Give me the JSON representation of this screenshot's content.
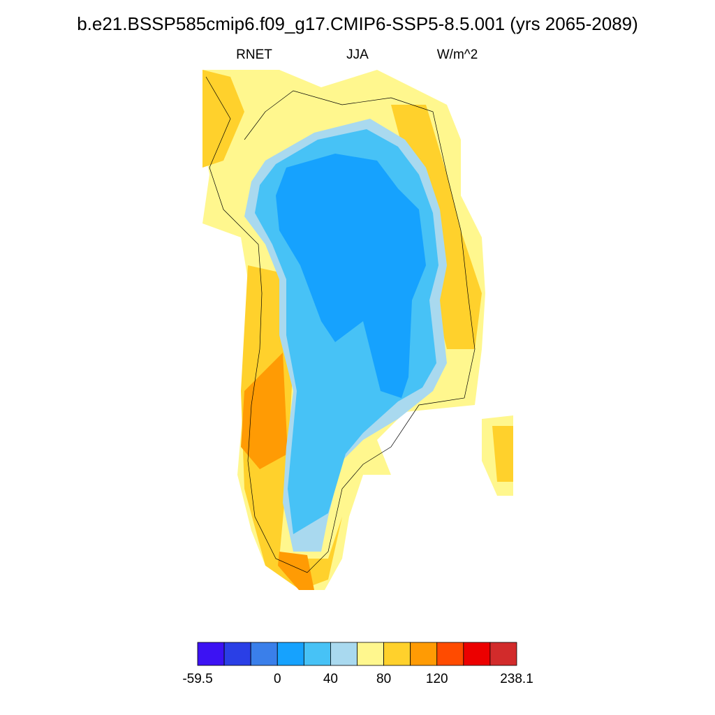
{
  "header": {
    "title": "b.e21.BSSP585cmip6.f09_g17.CMIP6-SSP5-8.5.001 (yrs 2065-2089)",
    "left": "RNET",
    "center": "JJA",
    "right": "W/m^2"
  },
  "colorbar": {
    "colors": [
      "#3c12f3",
      "#2a3fe6",
      "#3a7fea",
      "#16a2fe",
      "#47c2f6",
      "#a9d9ef",
      "#fff78e",
      "#ffd12c",
      "#ff9b04",
      "#ff4b00",
      "#ec0000",
      "#d22b2b"
    ],
    "levels": [
      -59.5,
      null,
      null,
      0,
      null,
      40,
      null,
      80,
      null,
      120,
      null,
      null,
      238.1
    ]
  }
}
